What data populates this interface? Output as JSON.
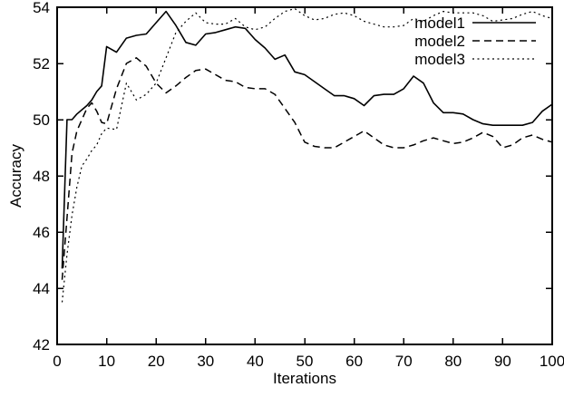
{
  "figure": {
    "background": "#ffffff",
    "foreground": "#000000"
  },
  "chart_data": {
    "type": "line",
    "title": "",
    "xlabel": "Iterations",
    "ylabel": "Accuracy",
    "xlim": [
      0,
      100
    ],
    "ylim": [
      42,
      54
    ],
    "xticks": [
      0,
      10,
      20,
      30,
      40,
      50,
      60,
      70,
      80,
      90,
      100
    ],
    "yticks": [
      42,
      44,
      46,
      48,
      50,
      52,
      54
    ],
    "grid": false,
    "legend_position": "top-right",
    "legend_entries": [
      "model1",
      "model2",
      "model3"
    ],
    "x": [
      1,
      2,
      3,
      4,
      5,
      6,
      7,
      8,
      9,
      10,
      12,
      14,
      16,
      18,
      20,
      22,
      24,
      26,
      28,
      30,
      32,
      34,
      36,
      38,
      40,
      42,
      44,
      46,
      48,
      50,
      52,
      54,
      56,
      58,
      60,
      62,
      64,
      66,
      68,
      70,
      72,
      74,
      76,
      78,
      80,
      82,
      84,
      86,
      88,
      90,
      92,
      94,
      96,
      98,
      100
    ],
    "series": [
      {
        "name": "model1",
        "style": "solid",
        "values": [
          44.7,
          50.0,
          50.0,
          50.2,
          50.35,
          50.5,
          50.7,
          51.0,
          51.2,
          52.6,
          52.4,
          52.9,
          53.0,
          53.05,
          53.45,
          53.85,
          53.35,
          52.75,
          52.65,
          53.05,
          53.1,
          53.2,
          53.3,
          53.25,
          52.85,
          52.55,
          52.15,
          52.3,
          51.7,
          51.6,
          51.35,
          51.1,
          50.85,
          50.85,
          50.75,
          50.5,
          50.85,
          50.9,
          50.9,
          51.1,
          51.55,
          51.3,
          50.6,
          50.25,
          50.25,
          50.2,
          50.0,
          49.85,
          49.8,
          49.8,
          49.8,
          49.8,
          49.9,
          50.3,
          50.55
        ]
      },
      {
        "name": "model2",
        "style": "dashed",
        "values": [
          44.3,
          46.5,
          48.8,
          49.6,
          50.0,
          50.4,
          50.6,
          50.3,
          49.9,
          49.85,
          51.1,
          52.0,
          52.2,
          51.9,
          51.3,
          50.95,
          51.2,
          51.5,
          51.75,
          51.8,
          51.6,
          51.4,
          51.35,
          51.15,
          51.1,
          51.1,
          50.9,
          50.4,
          49.9,
          49.2,
          49.05,
          49.0,
          49.0,
          49.2,
          49.4,
          49.6,
          49.35,
          49.1,
          49.0,
          49.0,
          49.1,
          49.25,
          49.35,
          49.25,
          49.15,
          49.2,
          49.35,
          49.55,
          49.4,
          49.0,
          49.1,
          49.35,
          49.45,
          49.3,
          49.2
        ]
      },
      {
        "name": "model3",
        "style": "dotted",
        "values": [
          43.5,
          45.2,
          46.6,
          47.6,
          48.35,
          48.6,
          48.9,
          49.1,
          49.5,
          49.7,
          49.65,
          51.3,
          50.7,
          50.9,
          51.3,
          52.2,
          53.1,
          53.5,
          53.8,
          53.45,
          53.4,
          53.4,
          53.6,
          53.3,
          53.2,
          53.3,
          53.6,
          53.85,
          53.95,
          53.7,
          53.55,
          53.6,
          53.75,
          53.8,
          53.7,
          53.5,
          53.4,
          53.3,
          53.3,
          53.35,
          53.6,
          53.5,
          53.7,
          53.85,
          53.8,
          53.8,
          53.8,
          53.7,
          53.5,
          53.55,
          53.6,
          53.75,
          53.85,
          53.7,
          53.6
        ]
      }
    ]
  }
}
